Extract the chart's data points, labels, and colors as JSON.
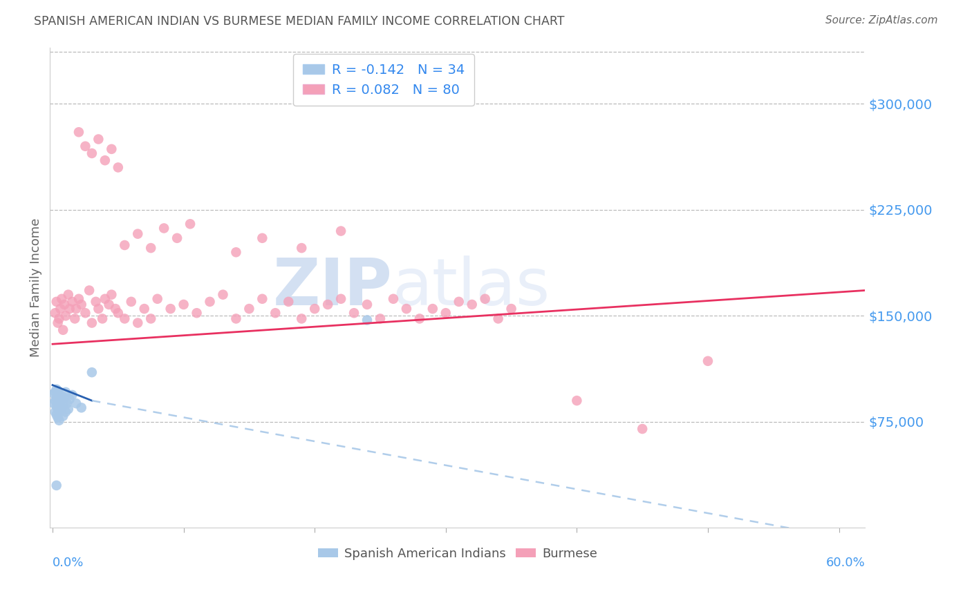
{
  "title": "SPANISH AMERICAN INDIAN VS BURMESE MEDIAN FAMILY INCOME CORRELATION CHART",
  "source": "Source: ZipAtlas.com",
  "ylabel": "Median Family Income",
  "ytick_labels": [
    "$75,000",
    "$150,000",
    "$225,000",
    "$300,000"
  ],
  "ytick_values": [
    75000,
    150000,
    225000,
    300000
  ],
  "ymin": 0,
  "ymax": 340000,
  "xmin": -0.002,
  "xmax": 0.62,
  "legend_blue_r": "-0.142",
  "legend_blue_n": "34",
  "legend_pink_r": "0.082",
  "legend_pink_n": "80",
  "blue_color": "#a8c8e8",
  "pink_color": "#f4a0b8",
  "blue_line_color": "#2860b0",
  "pink_line_color": "#e83060",
  "watermark_zip": "ZIP",
  "watermark_atlas": "atlas",
  "blue_scatter_x": [
    0.001,
    0.001,
    0.002,
    0.002,
    0.002,
    0.003,
    0.003,
    0.003,
    0.003,
    0.004,
    0.004,
    0.004,
    0.004,
    0.005,
    0.005,
    0.005,
    0.006,
    0.006,
    0.007,
    0.007,
    0.008,
    0.008,
    0.009,
    0.01,
    0.01,
    0.011,
    0.012,
    0.013,
    0.015,
    0.018,
    0.022,
    0.03,
    0.24,
    0.003
  ],
  "blue_scatter_y": [
    88000,
    95000,
    82000,
    90000,
    96000,
    80000,
    86000,
    92000,
    98000,
    78000,
    84000,
    91000,
    97000,
    76000,
    88000,
    94000,
    83000,
    90000,
    85000,
    93000,
    79000,
    87000,
    92000,
    82000,
    96000,
    88000,
    84000,
    91000,
    94000,
    88000,
    85000,
    110000,
    147000,
    30000
  ],
  "pink_scatter_x": [
    0.002,
    0.003,
    0.004,
    0.005,
    0.006,
    0.007,
    0.008,
    0.009,
    0.01,
    0.012,
    0.013,
    0.015,
    0.017,
    0.018,
    0.02,
    0.022,
    0.025,
    0.028,
    0.03,
    0.033,
    0.035,
    0.038,
    0.04,
    0.043,
    0.045,
    0.048,
    0.05,
    0.055,
    0.06,
    0.065,
    0.07,
    0.075,
    0.08,
    0.09,
    0.1,
    0.11,
    0.12,
    0.13,
    0.14,
    0.15,
    0.16,
    0.17,
    0.18,
    0.19,
    0.2,
    0.21,
    0.22,
    0.23,
    0.24,
    0.25,
    0.26,
    0.27,
    0.28,
    0.29,
    0.3,
    0.31,
    0.32,
    0.33,
    0.34,
    0.35,
    0.02,
    0.025,
    0.03,
    0.035,
    0.04,
    0.045,
    0.05,
    0.055,
    0.065,
    0.075,
    0.085,
    0.095,
    0.105,
    0.14,
    0.16,
    0.19,
    0.22,
    0.5,
    0.4,
    0.45
  ],
  "pink_scatter_y": [
    152000,
    160000,
    145000,
    148000,
    155000,
    162000,
    140000,
    158000,
    150000,
    165000,
    155000,
    160000,
    148000,
    155000,
    162000,
    158000,
    152000,
    168000,
    145000,
    160000,
    155000,
    148000,
    162000,
    158000,
    165000,
    155000,
    152000,
    148000,
    160000,
    145000,
    155000,
    148000,
    162000,
    155000,
    158000,
    152000,
    160000,
    165000,
    148000,
    155000,
    162000,
    152000,
    160000,
    148000,
    155000,
    158000,
    162000,
    152000,
    158000,
    148000,
    162000,
    155000,
    148000,
    155000,
    152000,
    160000,
    158000,
    162000,
    148000,
    155000,
    280000,
    270000,
    265000,
    275000,
    260000,
    268000,
    255000,
    200000,
    208000,
    198000,
    212000,
    205000,
    215000,
    195000,
    205000,
    198000,
    210000,
    118000,
    90000,
    70000
  ]
}
